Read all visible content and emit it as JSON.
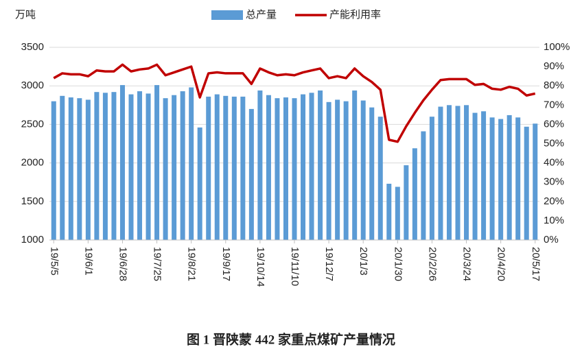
{
  "chart_data": {
    "type": "bar_line",
    "caption": "图 1  晋陕蒙 442 家重点煤矿产量情况",
    "y_label": "万吨",
    "categories": [
      "19/5/5",
      null,
      null,
      null,
      "19/6/1",
      null,
      null,
      null,
      "19/6/28",
      null,
      null,
      null,
      "19/7/25",
      null,
      null,
      null,
      "19/8/21",
      null,
      null,
      null,
      "19/9/17",
      null,
      null,
      null,
      "19/10/14",
      null,
      null,
      null,
      "19/11/10",
      null,
      null,
      null,
      "19/12/7",
      null,
      null,
      null,
      "20/1/3",
      null,
      null,
      null,
      "20/1/30",
      null,
      null,
      null,
      "20/2/26",
      null,
      null,
      null,
      "20/3/24",
      null,
      null,
      null,
      "20/4/20",
      null,
      null,
      null,
      "20/5/17"
    ],
    "series": [
      {
        "name": "总产量",
        "color": "#5b9bd5",
        "values": [
          2800,
          2870,
          2850,
          2840,
          2820,
          2920,
          2910,
          2920,
          3010,
          2890,
          2930,
          2900,
          3010,
          2840,
          2880,
          2930,
          2980,
          2460,
          2860,
          2890,
          2870,
          2860,
          2860,
          2700,
          2940,
          2880,
          2840,
          2850,
          2840,
          2890,
          2910,
          2940,
          2790,
          2820,
          2800,
          2940,
          2810,
          2720,
          2600,
          1730,
          1690,
          1970,
          2190,
          2410,
          2600,
          2730,
          2750,
          2740,
          2750,
          2650,
          2670,
          2590,
          2570,
          2620,
          2590,
          2470,
          2510
        ]
      },
      {
        "name": "产能利用率",
        "color": "#c00000",
        "axis": "y2",
        "values": [
          84,
          86.5,
          86,
          86,
          85,
          88,
          87.5,
          87.5,
          91,
          87.5,
          88.5,
          89,
          91,
          85.5,
          87,
          88.5,
          90,
          74,
          86.5,
          87,
          86.5,
          86.5,
          86.5,
          81,
          89,
          87,
          85.5,
          86,
          85.5,
          87,
          88,
          89,
          84,
          85,
          84,
          89,
          85,
          82,
          78,
          52,
          51,
          59,
          66,
          72.5,
          78,
          83,
          83.5,
          83.5,
          83.5,
          80.5,
          81,
          78.5,
          78,
          79.5,
          78.5,
          75,
          76
        ]
      }
    ],
    "ylim": [
      1000,
      3500
    ],
    "yticks": [
      1000,
      1500,
      2000,
      2500,
      3000,
      3500
    ],
    "y2lim": [
      0,
      100
    ],
    "y2ticks": [
      {
        "value": 0,
        "label": "0%"
      },
      {
        "value": 10,
        "label": "10%"
      },
      {
        "value": 20,
        "label": "20%"
      },
      {
        "value": 30,
        "label": "30%"
      },
      {
        "value": 40,
        "label": "40%"
      },
      {
        "value": 50,
        "label": "50%"
      },
      {
        "value": 60,
        "label": "60%"
      },
      {
        "value": 70,
        "label": "70%"
      },
      {
        "value": 80,
        "label": "80%"
      },
      {
        "value": 90,
        "label": "90%"
      },
      {
        "value": 100,
        "label": "100%"
      }
    ],
    "grid": true
  }
}
